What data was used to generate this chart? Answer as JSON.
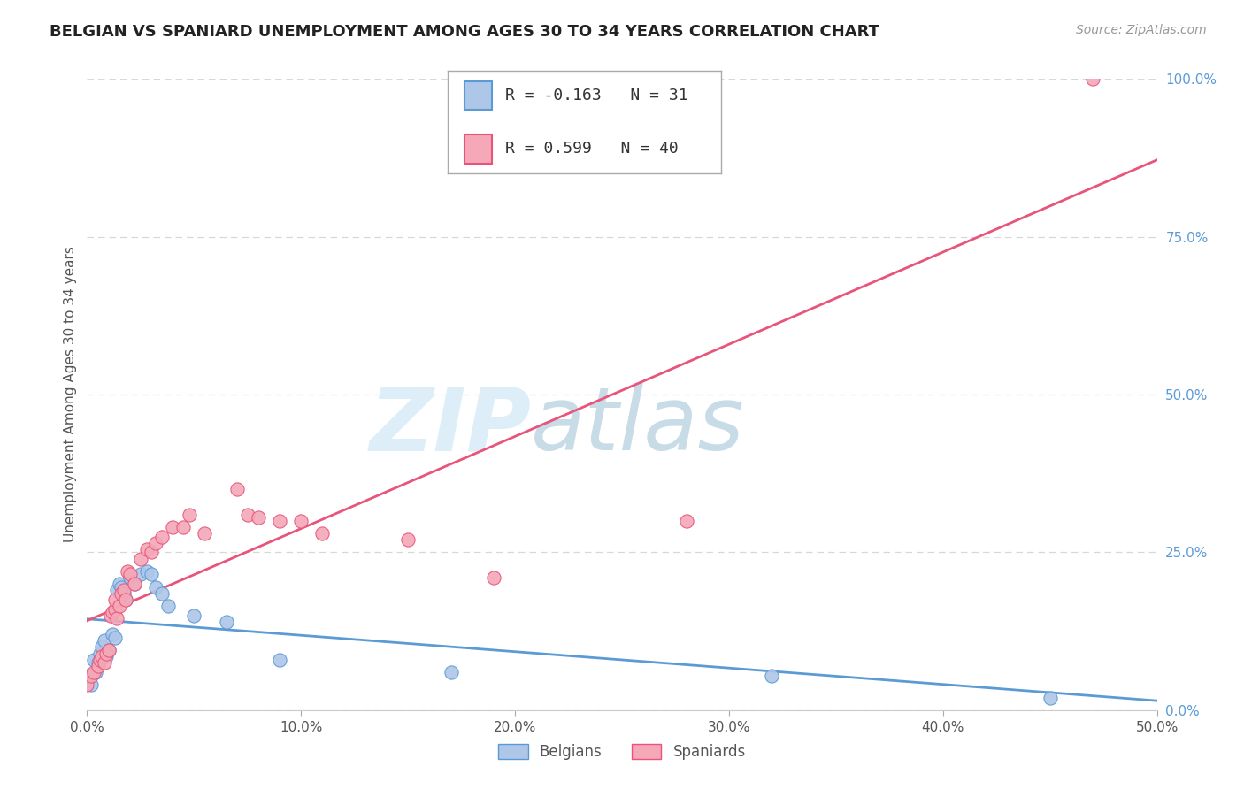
{
  "title": "BELGIAN VS SPANIARD UNEMPLOYMENT AMONG AGES 30 TO 34 YEARS CORRELATION CHART",
  "source": "Source: ZipAtlas.com",
  "ylabel": "Unemployment Among Ages 30 to 34 years",
  "xlim": [
    0.0,
    0.5
  ],
  "ylim": [
    0.0,
    1.0
  ],
  "xticks": [
    0.0,
    0.1,
    0.2,
    0.3,
    0.4,
    0.5
  ],
  "yticks": [
    0.0,
    0.25,
    0.5,
    0.75,
    1.0
  ],
  "xtick_labels": [
    "0.0%",
    "10.0%",
    "20.0%",
    "30.0%",
    "40.0%",
    "50.0%"
  ],
  "ytick_labels": [
    "0.0%",
    "25.0%",
    "50.0%",
    "75.0%",
    "100.0%"
  ],
  "belgian_color": "#aec6e8",
  "spaniard_color": "#f4a8b8",
  "belgian_line_color": "#5b9bd5",
  "spaniard_line_color": "#e8547a",
  "R_belgian": -0.163,
  "N_belgian": 31,
  "R_spaniard": 0.599,
  "N_spaniard": 40,
  "background_color": "#ffffff",
  "grid_color": "#d8d8d8",
  "belgian_scatter": [
    [
      0.0,
      0.055
    ],
    [
      0.002,
      0.04
    ],
    [
      0.003,
      0.08
    ],
    [
      0.004,
      0.06
    ],
    [
      0.005,
      0.075
    ],
    [
      0.006,
      0.09
    ],
    [
      0.007,
      0.1
    ],
    [
      0.008,
      0.11
    ],
    [
      0.009,
      0.085
    ],
    [
      0.01,
      0.095
    ],
    [
      0.012,
      0.12
    ],
    [
      0.013,
      0.115
    ],
    [
      0.014,
      0.19
    ],
    [
      0.015,
      0.2
    ],
    [
      0.016,
      0.195
    ],
    [
      0.017,
      0.185
    ],
    [
      0.018,
      0.175
    ],
    [
      0.02,
      0.21
    ],
    [
      0.022,
      0.2
    ],
    [
      0.025,
      0.215
    ],
    [
      0.028,
      0.22
    ],
    [
      0.03,
      0.215
    ],
    [
      0.032,
      0.195
    ],
    [
      0.035,
      0.185
    ],
    [
      0.038,
      0.165
    ],
    [
      0.05,
      0.15
    ],
    [
      0.065,
      0.14
    ],
    [
      0.09,
      0.08
    ],
    [
      0.17,
      0.06
    ],
    [
      0.32,
      0.055
    ],
    [
      0.45,
      0.02
    ]
  ],
  "spaniard_scatter": [
    [
      0.0,
      0.04
    ],
    [
      0.002,
      0.055
    ],
    [
      0.003,
      0.06
    ],
    [
      0.005,
      0.07
    ],
    [
      0.006,
      0.08
    ],
    [
      0.007,
      0.085
    ],
    [
      0.008,
      0.075
    ],
    [
      0.009,
      0.09
    ],
    [
      0.01,
      0.095
    ],
    [
      0.011,
      0.15
    ],
    [
      0.012,
      0.155
    ],
    [
      0.013,
      0.16
    ],
    [
      0.013,
      0.175
    ],
    [
      0.014,
      0.145
    ],
    [
      0.015,
      0.165
    ],
    [
      0.016,
      0.185
    ],
    [
      0.017,
      0.19
    ],
    [
      0.018,
      0.175
    ],
    [
      0.019,
      0.22
    ],
    [
      0.02,
      0.215
    ],
    [
      0.022,
      0.2
    ],
    [
      0.025,
      0.24
    ],
    [
      0.028,
      0.255
    ],
    [
      0.03,
      0.25
    ],
    [
      0.032,
      0.265
    ],
    [
      0.035,
      0.275
    ],
    [
      0.04,
      0.29
    ],
    [
      0.045,
      0.29
    ],
    [
      0.048,
      0.31
    ],
    [
      0.055,
      0.28
    ],
    [
      0.07,
      0.35
    ],
    [
      0.075,
      0.31
    ],
    [
      0.08,
      0.305
    ],
    [
      0.09,
      0.3
    ],
    [
      0.1,
      0.3
    ],
    [
      0.11,
      0.28
    ],
    [
      0.15,
      0.27
    ],
    [
      0.19,
      0.21
    ],
    [
      0.28,
      0.3
    ],
    [
      0.47,
      1.0
    ]
  ]
}
